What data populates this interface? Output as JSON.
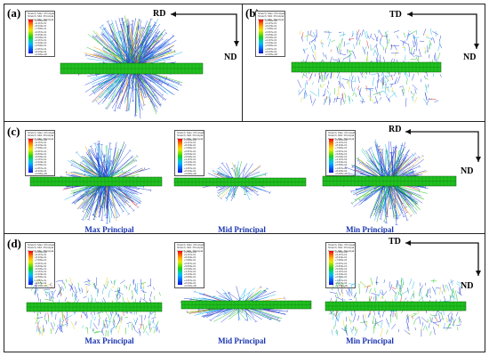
{
  "panels": {
    "a": {
      "label": "(a)",
      "axis_h": "RD",
      "axis_v": "ND"
    },
    "b": {
      "label": "(b)",
      "axis_h": "TD",
      "axis_v": "ND"
    },
    "c": {
      "label": "(c)",
      "axis_h": "RD",
      "axis_v": "ND",
      "captions": [
        "Max Principal",
        "Mid Principal",
        "Min Principal"
      ]
    },
    "d": {
      "label": "(d)",
      "axis_h": "TD",
      "axis_v": "ND",
      "captions": [
        "Max Principal",
        "Mid Principal",
        "Min Principal"
      ]
    }
  },
  "legend": {
    "title_lines": [
      "Stretch, Max. Principal",
      "Stretch, Mid. Principal",
      "Stretch, Min. Principal"
    ],
    "values": "+1.000e+00\n+9.167e-01\n+8.333e-01\n+7.500e-01\n+6.667e-01\n+5.833e-01\n+5.000e-01\n+4.167e-01\n+3.333e-01\n+2.500e-01\n+1.667e-01\n+8.333e-02\n+0.000e+00"
  },
  "colors": {
    "bar_fill": "#1fbf1f",
    "bar_stroke": "#0a5a0a",
    "vector_blue": "#1e3cd8",
    "vector_cyan": "#14b4e6",
    "vector_red": "#e01818",
    "caption_text": "#1a35b0"
  }
}
